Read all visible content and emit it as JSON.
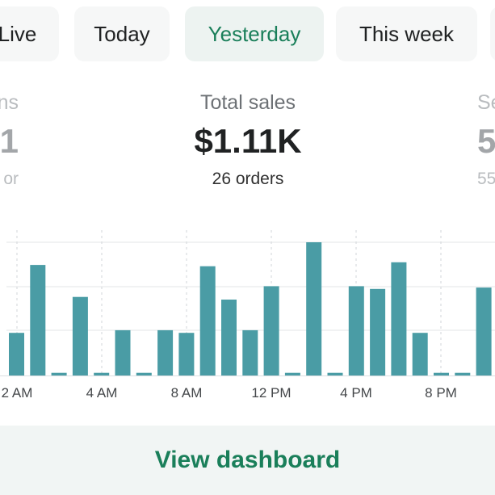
{
  "tabs": [
    {
      "label": "Live",
      "selected": false
    },
    {
      "label": "Today",
      "selected": false
    },
    {
      "label": "Yesterday",
      "selected": true
    },
    {
      "label": "This week",
      "selected": false
    }
  ],
  "metrics": {
    "left": {
      "label": "ns",
      "value": "1",
      "sub": "or"
    },
    "center": {
      "label": "Total sales",
      "value": "$1.11K",
      "sub": "26 orders"
    },
    "right": {
      "label": "Se",
      "value": "5",
      "sub": "55"
    }
  },
  "chart_data": {
    "type": "bar",
    "title": "",
    "xlabel": "",
    "ylabel": "",
    "grid": true,
    "x_tick_labels": [
      "2 AM",
      "4 AM",
      "8 AM",
      "12 PM",
      "4 PM",
      "8 PM"
    ],
    "values": [
      0.32,
      0.83,
      0.02,
      0.59,
      0.02,
      0.34,
      0.02,
      0.34,
      0.32,
      0.82,
      0.57,
      0.34,
      0.67,
      0.02,
      1.0,
      0.02,
      0.67,
      0.65,
      0.85,
      0.32,
      0.02,
      0.02,
      0.66
    ],
    "ylim": [
      0,
      1
    ],
    "bar_color": "#4a9ca5"
  },
  "footer": {
    "button_label": "View dashboard"
  },
  "colors": {
    "accent": "#1a7f5a",
    "selected_tab_bg": "#edf3f1",
    "tab_bg": "#f6f7f7",
    "bar": "#4a9ca5"
  }
}
